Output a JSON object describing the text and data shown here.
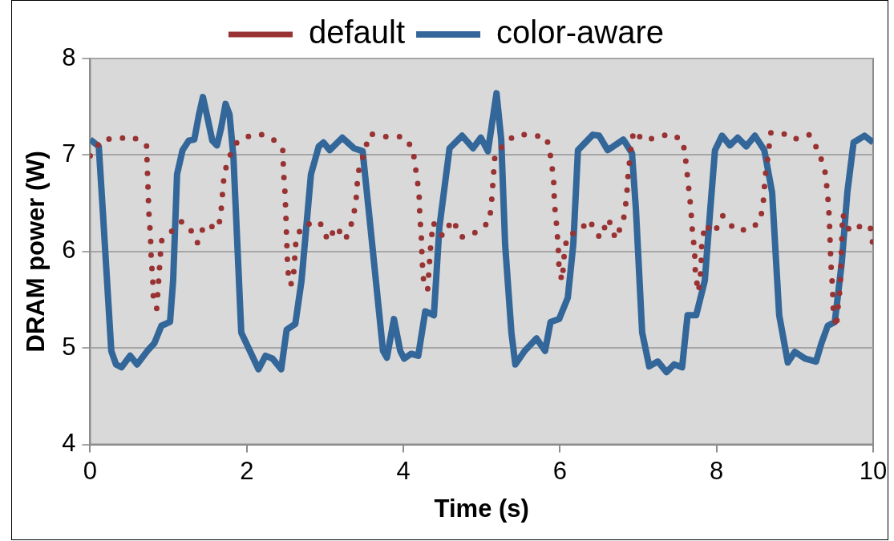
{
  "chart_data": {
    "type": "line",
    "xlabel": "Time (s)",
    "ylabel": "DRAM power (W)",
    "xlim": [
      0,
      10
    ],
    "xticks": [
      0,
      2,
      4,
      6,
      8,
      10
    ],
    "ylim": [
      4,
      8
    ],
    "yticks": [
      4,
      5,
      6,
      7,
      8
    ],
    "grid": "y",
    "legend": "top",
    "marker": "none",
    "series": [
      {
        "name": "default",
        "color": "#993333",
        "line_style": "dotted",
        "x": [
          0,
          0.15,
          0.35,
          0.54,
          0.72,
          0.73,
          0.74,
          0.75,
          0.77,
          0.78,
          0.8,
          0.81,
          0.85,
          0.87,
          0.89,
          0.91,
          0.99,
          1.17,
          1.28,
          1.37,
          1.46,
          1.64,
          1.68,
          1.7,
          1.75,
          1.88,
          2.07,
          2.2,
          2.33,
          2.46,
          2.47,
          2.49,
          2.5,
          2.51,
          2.52,
          2.54,
          2.59,
          2.61,
          2.63,
          2.71,
          2.93,
          3.04,
          3.14,
          3.26,
          3.36,
          3.4,
          3.42,
          3.57,
          3.78,
          4,
          4.12,
          4.16,
          4.2,
          4.21,
          4.23,
          4.24,
          4.26,
          4.31,
          4.33,
          4.35,
          4.38,
          4.5,
          4.63,
          4.74,
          4.85,
          4.96,
          5.1,
          5.13,
          5.15,
          5.17,
          5.33,
          5.45,
          5.62,
          5.83,
          5.89,
          5.92,
          5.93,
          5.96,
          5.98,
          5.99,
          6.03,
          6.05,
          6.09,
          6.26,
          6.37,
          6.51,
          6.62,
          6.71,
          6.81,
          6.85,
          6.87,
          6.9,
          6.94,
          7.07,
          7.22,
          7.41,
          7.57,
          7.61,
          7.64,
          7.67,
          7.69,
          7.72,
          7.73,
          7.77,
          7.8,
          7.81,
          7.85,
          7.97,
          8.08,
          8.24,
          8.43,
          8.56,
          8.6,
          8.62,
          8.66,
          8.69,
          8.84,
          8.98,
          9.18,
          9.31,
          9.39,
          9.42,
          9.44,
          9.45,
          9.46,
          9.48,
          9.49,
          9.53,
          9.55,
          9.58,
          9.61,
          9.7,
          9.83,
          9.96,
          10
        ],
        "values": [
          6.99,
          7.16,
          7.17,
          7.19,
          7.1,
          6.86,
          6.63,
          6.4,
          6.17,
          5.93,
          5.7,
          5.46,
          5.41,
          5.64,
          5.88,
          6.11,
          6.17,
          6.31,
          6.23,
          6.09,
          6.28,
          6.24,
          6.48,
          6.71,
          6.94,
          7.14,
          7.21,
          7.21,
          7.17,
          7.05,
          6.82,
          6.59,
          6.36,
          6.12,
          5.89,
          5.66,
          5.67,
          5.9,
          6.13,
          6.27,
          6.31,
          6.11,
          6.26,
          6.12,
          6.34,
          6.57,
          6.81,
          7.22,
          7.19,
          7.19,
          7.07,
          6.84,
          6.61,
          6.38,
          6.14,
          5.9,
          5.68,
          5.6,
          5.84,
          6.07,
          6.3,
          6.16,
          6.33,
          6.15,
          6.16,
          6.22,
          6.31,
          6.55,
          6.78,
          7,
          7.15,
          7.21,
          7.21,
          7.18,
          6.95,
          6.72,
          6.49,
          6.25,
          6.01,
          5.79,
          5.7,
          5.93,
          6.16,
          6.22,
          6.33,
          6.14,
          6.34,
          6.13,
          6.32,
          6.55,
          6.79,
          7.02,
          7.25,
          7.15,
          7.18,
          7.22,
          7.15,
          6.92,
          6.69,
          6.46,
          6.23,
          6,
          5.76,
          5.58,
          5.81,
          6.05,
          6.28,
          6.19,
          6.37,
          6.22,
          6.23,
          6.32,
          6.54,
          6.77,
          7,
          7.23,
          7.23,
          7.16,
          7.21,
          7.03,
          6.81,
          6.58,
          6.34,
          6.11,
          5.88,
          5.64,
          5.41,
          5.21,
          5.41,
          5.64,
          6.39,
          6.21,
          6.26,
          6.27,
          6.05
        ]
      },
      {
        "name": "color-aware",
        "color": "#336699",
        "line_style": "solid",
        "x": [
          0,
          0.11,
          0.16,
          0.27,
          0.33,
          0.4,
          0.51,
          0.6,
          0.73,
          0.82,
          0.91,
          1.02,
          1.06,
          1.11,
          1.18,
          1.26,
          1.33,
          1.39,
          1.44,
          1.5,
          1.56,
          1.62,
          1.67,
          1.73,
          1.78,
          1.83,
          1.88,
          1.93,
          2.04,
          2.15,
          2.24,
          2.33,
          2.44,
          2.51,
          2.62,
          2.7,
          2.82,
          2.92,
          2.98,
          3.06,
          3.22,
          3.37,
          3.48,
          3.58,
          3.74,
          3.79,
          3.88,
          3.96,
          4.01,
          4.1,
          4.19,
          4.28,
          4.39,
          4.46,
          4.59,
          4.75,
          4.89,
          4.99,
          5.08,
          5.19,
          5.25,
          5.3,
          5.38,
          5.43,
          5.55,
          5.7,
          5.81,
          5.88,
          5.99,
          6.1,
          6.17,
          6.23,
          6.42,
          6.5,
          6.61,
          6.81,
          6.92,
          6.97,
          7.05,
          7.14,
          7.25,
          7.36,
          7.46,
          7.56,
          7.63,
          7.74,
          7.85,
          7.92,
          7.98,
          8.07,
          8.17,
          8.27,
          8.38,
          8.49,
          8.61,
          8.71,
          8.8,
          8.91,
          9,
          9.13,
          9.27,
          9.34,
          9.42,
          9.51,
          9.6,
          9.67,
          9.75,
          9.89,
          10
        ],
        "values": [
          7.16,
          7.09,
          6.44,
          4.97,
          4.83,
          4.8,
          4.92,
          4.83,
          4.97,
          5.05,
          5.23,
          5.27,
          5.7,
          6.8,
          7.05,
          7.15,
          7.16,
          7.42,
          7.6,
          7.38,
          7.15,
          7.1,
          7.27,
          7.53,
          7.42,
          6.98,
          6.07,
          5.16,
          4.97,
          4.78,
          4.92,
          4.89,
          4.78,
          5.19,
          5.25,
          5.7,
          6.8,
          7.09,
          7.13,
          7.05,
          7.18,
          7.07,
          7.04,
          6.25,
          4.97,
          4.9,
          5.3,
          4.97,
          4.89,
          4.94,
          4.92,
          5.38,
          5.34,
          6.25,
          7.07,
          7.2,
          7.07,
          7.18,
          7.04,
          7.64,
          7.16,
          6.07,
          5.16,
          4.83,
          4.97,
          5.1,
          4.97,
          5.27,
          5.3,
          5.52,
          6.07,
          7.05,
          7.21,
          7.2,
          7.05,
          7.16,
          7.02,
          6.44,
          5.16,
          4.81,
          4.86,
          4.75,
          4.83,
          4.8,
          5.34,
          5.34,
          5.7,
          6.44,
          7.05,
          7.2,
          7.1,
          7.18,
          7.09,
          7.2,
          7.05,
          6.61,
          5.34,
          4.85,
          4.96,
          4.89,
          4.86,
          5.05,
          5.23,
          5.27,
          5.89,
          6.61,
          7.13,
          7.2,
          7.13
        ]
      }
    ]
  }
}
